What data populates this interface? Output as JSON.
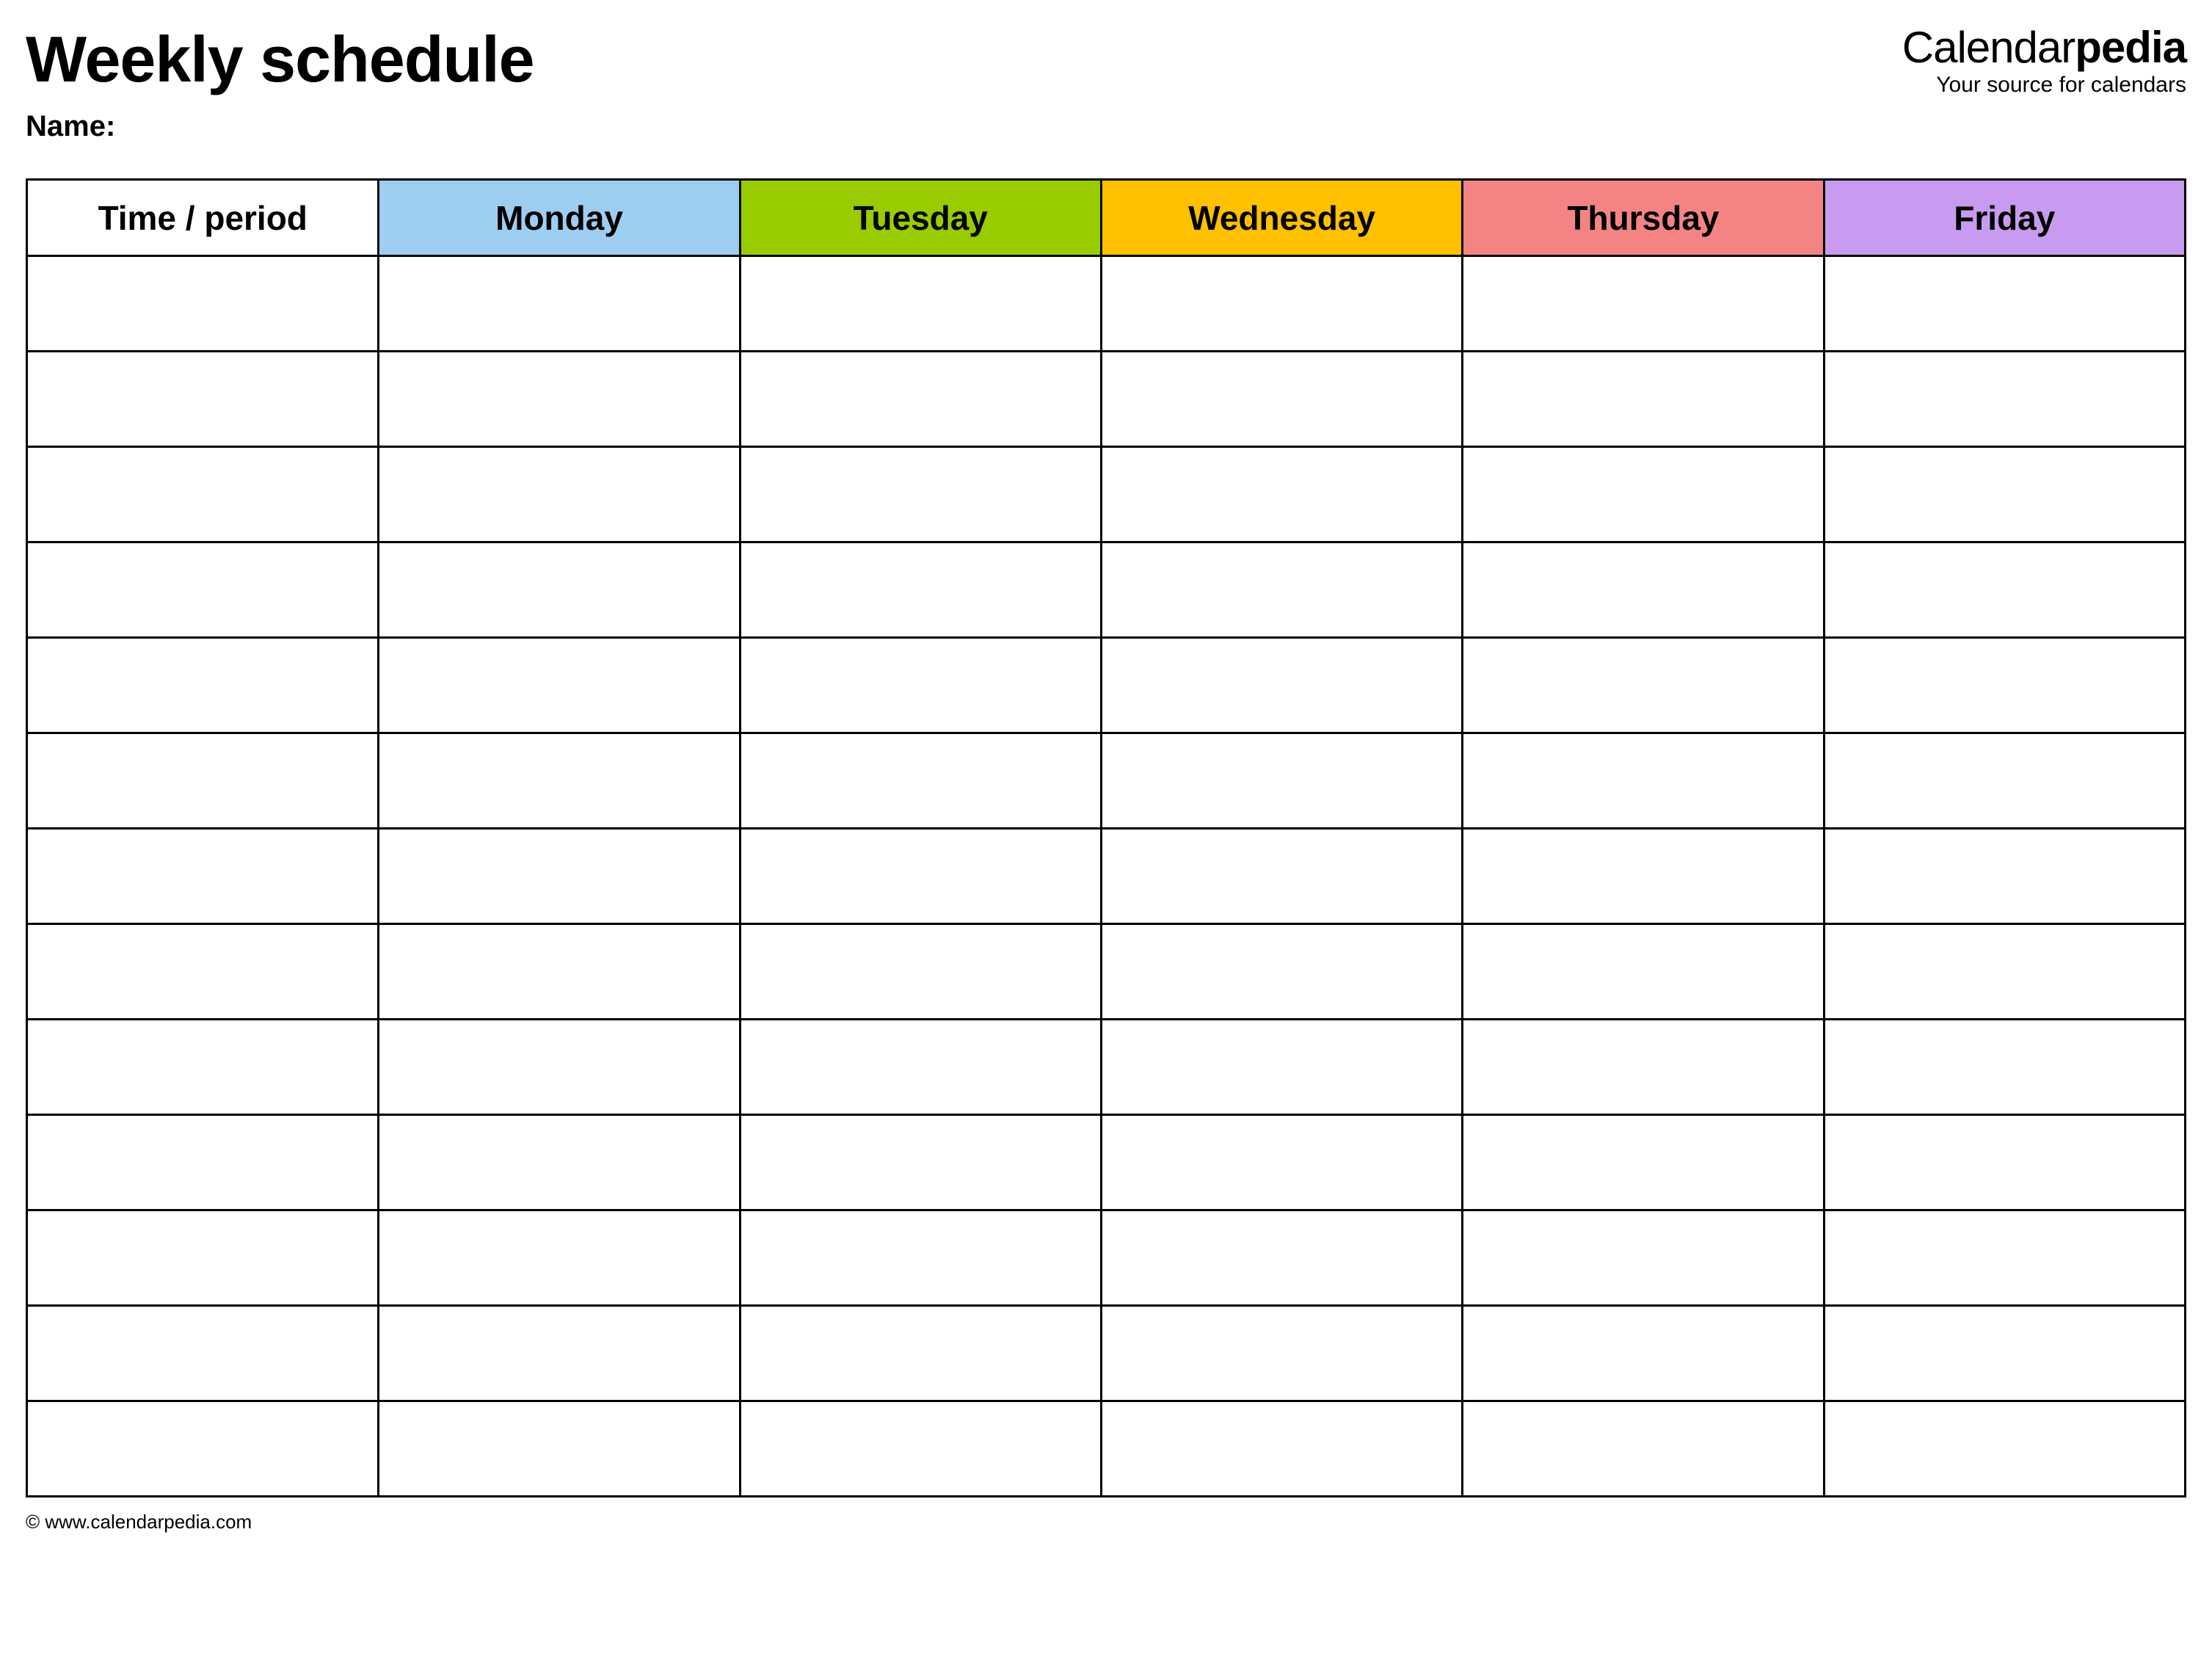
{
  "header": {
    "title": "Weekly schedule",
    "name_label": "Name:"
  },
  "brand": {
    "name_prefix": "Calendar",
    "name_suffix": "pedia",
    "tagline": "Your source for calendars"
  },
  "table": {
    "columns": [
      {
        "label": "Time / period",
        "bg_color": "#ffffff"
      },
      {
        "label": "Monday",
        "bg_color": "#9ecdf2"
      },
      {
        "label": "Tuesday",
        "bg_color": "#99cc00"
      },
      {
        "label": "Wednesday",
        "bg_color": "#ffc000"
      },
      {
        "label": "Thursday",
        "bg_color": "#f48484"
      },
      {
        "label": "Friday",
        "bg_color": "#c89bf0"
      }
    ],
    "row_count": 13,
    "border_color": "#000000",
    "background_color": "#ffffff"
  },
  "footer": {
    "copyright": "© www.calendarpedia.com"
  }
}
